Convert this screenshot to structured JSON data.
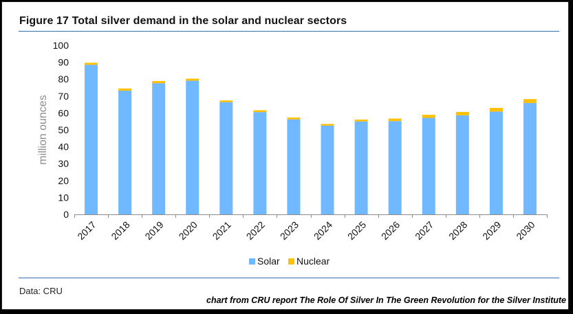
{
  "title": "Figure 17  Total silver demand in the solar and nuclear sectors",
  "source": "Data: CRU",
  "credit": "chart from CRU report The Role Of Silver In The Green Revolution for the Silver Institute",
  "colors": {
    "solar": "#70b8ff",
    "nuclear": "#ffc000",
    "rule": "#2f6db5"
  },
  "chart_data": {
    "type": "bar",
    "stacked": true,
    "categories": [
      "2017",
      "2018",
      "2019",
      "2020",
      "2021",
      "2022",
      "2023",
      "2024",
      "2025",
      "2026",
      "2027",
      "2028",
      "2029",
      "2030"
    ],
    "series": [
      {
        "name": "Solar",
        "values": [
          88.5,
          73.2,
          77.6,
          79.1,
          66.4,
          60.5,
          56.2,
          52.5,
          55.0,
          55.2,
          57.1,
          58.6,
          60.8,
          65.9
        ]
      },
      {
        "name": "Nuclear",
        "values": [
          1.2,
          1.3,
          1.3,
          1.2,
          1.0,
          1.1,
          1.1,
          1.0,
          1.1,
          1.5,
          1.8,
          2.0,
          2.2,
          2.3
        ]
      }
    ],
    "xlabel": "",
    "ylabel": "million ounces",
    "ylim": [
      0,
      100
    ],
    "yticks": [
      0,
      10,
      20,
      30,
      40,
      50,
      60,
      70,
      80,
      90,
      100
    ],
    "grid": false,
    "legend": "bottom-center"
  }
}
